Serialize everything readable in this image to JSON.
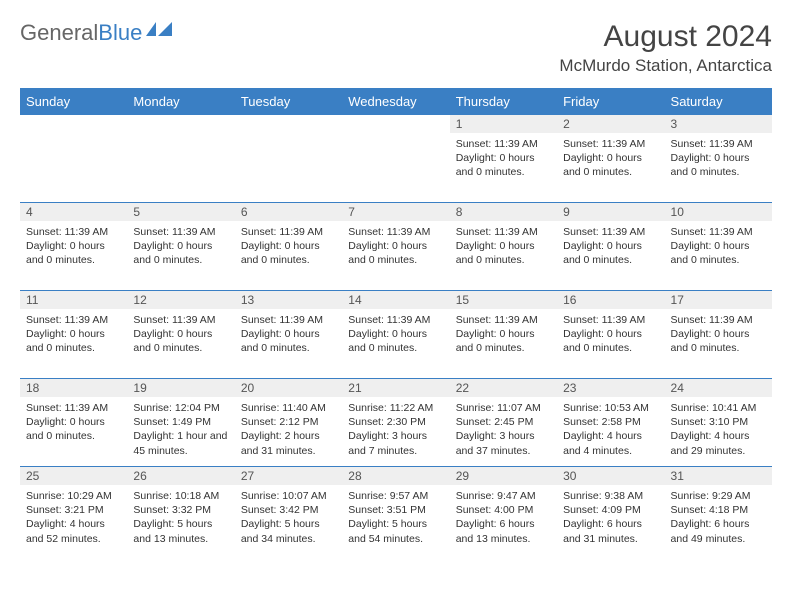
{
  "logo": {
    "part1": "General",
    "part2": "Blue"
  },
  "title": "August 2024",
  "location": "McMurdo Station, Antarctica",
  "colors": {
    "header_bg": "#3a7fc4",
    "header_text": "#ffffff",
    "daynum_bg": "#efefef",
    "row_border": "#3a7fc4",
    "page_bg": "#ffffff",
    "text": "#333333"
  },
  "day_headers": [
    "Sunday",
    "Monday",
    "Tuesday",
    "Wednesday",
    "Thursday",
    "Friday",
    "Saturday"
  ],
  "weeks": [
    [
      {
        "num": "",
        "lines": []
      },
      {
        "num": "",
        "lines": []
      },
      {
        "num": "",
        "lines": []
      },
      {
        "num": "",
        "lines": []
      },
      {
        "num": "1",
        "lines": [
          "Sunset: 11:39 AM",
          "Daylight: 0 hours",
          "and 0 minutes."
        ]
      },
      {
        "num": "2",
        "lines": [
          "Sunset: 11:39 AM",
          "Daylight: 0 hours",
          "and 0 minutes."
        ]
      },
      {
        "num": "3",
        "lines": [
          "Sunset: 11:39 AM",
          "Daylight: 0 hours",
          "and 0 minutes."
        ]
      }
    ],
    [
      {
        "num": "4",
        "lines": [
          "Sunset: 11:39 AM",
          "Daylight: 0 hours",
          "and 0 minutes."
        ]
      },
      {
        "num": "5",
        "lines": [
          "Sunset: 11:39 AM",
          "Daylight: 0 hours",
          "and 0 minutes."
        ]
      },
      {
        "num": "6",
        "lines": [
          "Sunset: 11:39 AM",
          "Daylight: 0 hours",
          "and 0 minutes."
        ]
      },
      {
        "num": "7",
        "lines": [
          "Sunset: 11:39 AM",
          "Daylight: 0 hours",
          "and 0 minutes."
        ]
      },
      {
        "num": "8",
        "lines": [
          "Sunset: 11:39 AM",
          "Daylight: 0 hours",
          "and 0 minutes."
        ]
      },
      {
        "num": "9",
        "lines": [
          "Sunset: 11:39 AM",
          "Daylight: 0 hours",
          "and 0 minutes."
        ]
      },
      {
        "num": "10",
        "lines": [
          "Sunset: 11:39 AM",
          "Daylight: 0 hours",
          "and 0 minutes."
        ]
      }
    ],
    [
      {
        "num": "11",
        "lines": [
          "Sunset: 11:39 AM",
          "Daylight: 0 hours",
          "and 0 minutes."
        ]
      },
      {
        "num": "12",
        "lines": [
          "Sunset: 11:39 AM",
          "Daylight: 0 hours",
          "and 0 minutes."
        ]
      },
      {
        "num": "13",
        "lines": [
          "Sunset: 11:39 AM",
          "Daylight: 0 hours",
          "and 0 minutes."
        ]
      },
      {
        "num": "14",
        "lines": [
          "Sunset: 11:39 AM",
          "Daylight: 0 hours",
          "and 0 minutes."
        ]
      },
      {
        "num": "15",
        "lines": [
          "Sunset: 11:39 AM",
          "Daylight: 0 hours",
          "and 0 minutes."
        ]
      },
      {
        "num": "16",
        "lines": [
          "Sunset: 11:39 AM",
          "Daylight: 0 hours",
          "and 0 minutes."
        ]
      },
      {
        "num": "17",
        "lines": [
          "Sunset: 11:39 AM",
          "Daylight: 0 hours",
          "and 0 minutes."
        ]
      }
    ],
    [
      {
        "num": "18",
        "lines": [
          "Sunset: 11:39 AM",
          "Daylight: 0 hours",
          "and 0 minutes."
        ]
      },
      {
        "num": "19",
        "lines": [
          "Sunrise: 12:04 PM",
          "Sunset: 1:49 PM",
          "Daylight: 1 hour and",
          "45 minutes."
        ]
      },
      {
        "num": "20",
        "lines": [
          "Sunrise: 11:40 AM",
          "Sunset: 2:12 PM",
          "Daylight: 2 hours",
          "and 31 minutes."
        ]
      },
      {
        "num": "21",
        "lines": [
          "Sunrise: 11:22 AM",
          "Sunset: 2:30 PM",
          "Daylight: 3 hours",
          "and 7 minutes."
        ]
      },
      {
        "num": "22",
        "lines": [
          "Sunrise: 11:07 AM",
          "Sunset: 2:45 PM",
          "Daylight: 3 hours",
          "and 37 minutes."
        ]
      },
      {
        "num": "23",
        "lines": [
          "Sunrise: 10:53 AM",
          "Sunset: 2:58 PM",
          "Daylight: 4 hours",
          "and 4 minutes."
        ]
      },
      {
        "num": "24",
        "lines": [
          "Sunrise: 10:41 AM",
          "Sunset: 3:10 PM",
          "Daylight: 4 hours",
          "and 29 minutes."
        ]
      }
    ],
    [
      {
        "num": "25",
        "lines": [
          "Sunrise: 10:29 AM",
          "Sunset: 3:21 PM",
          "Daylight: 4 hours",
          "and 52 minutes."
        ]
      },
      {
        "num": "26",
        "lines": [
          "Sunrise: 10:18 AM",
          "Sunset: 3:32 PM",
          "Daylight: 5 hours",
          "and 13 minutes."
        ]
      },
      {
        "num": "27",
        "lines": [
          "Sunrise: 10:07 AM",
          "Sunset: 3:42 PM",
          "Daylight: 5 hours",
          "and 34 minutes."
        ]
      },
      {
        "num": "28",
        "lines": [
          "Sunrise: 9:57 AM",
          "Sunset: 3:51 PM",
          "Daylight: 5 hours",
          "and 54 minutes."
        ]
      },
      {
        "num": "29",
        "lines": [
          "Sunrise: 9:47 AM",
          "Sunset: 4:00 PM",
          "Daylight: 6 hours",
          "and 13 minutes."
        ]
      },
      {
        "num": "30",
        "lines": [
          "Sunrise: 9:38 AM",
          "Sunset: 4:09 PM",
          "Daylight: 6 hours",
          "and 31 minutes."
        ]
      },
      {
        "num": "31",
        "lines": [
          "Sunrise: 9:29 AM",
          "Sunset: 4:18 PM",
          "Daylight: 6 hours",
          "and 49 minutes."
        ]
      }
    ]
  ]
}
